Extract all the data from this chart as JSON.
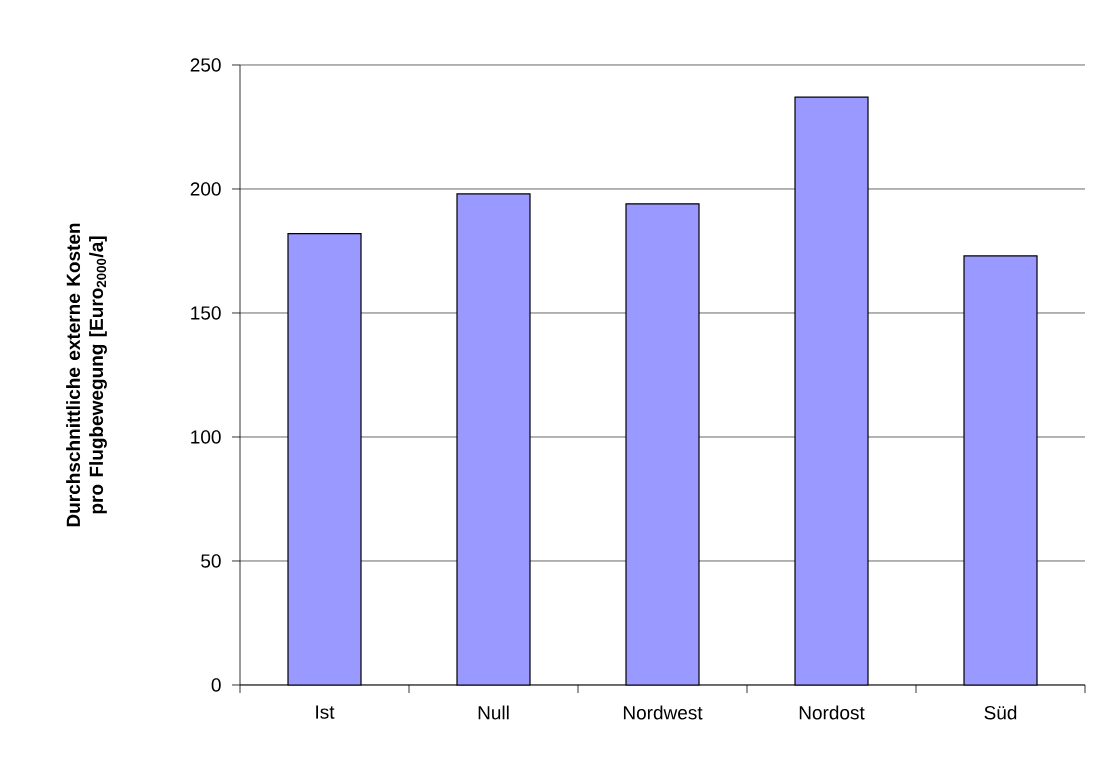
{
  "chart_data": {
    "type": "bar",
    "ylabel": "Durchschnittliche externe Kosten pro Flugbewegung [Euro$_{2000}$/a]",
    "categories": [
      "Ist",
      "Null",
      "Nordwest",
      "Nordost",
      "Süd"
    ],
    "values": [
      182,
      198,
      194,
      237,
      173
    ],
    "color": "#9999ff",
    "ylim": [
      0,
      250
    ],
    "yticks": [
      0,
      50,
      100,
      150,
      200,
      250
    ],
    "grid": "y"
  }
}
